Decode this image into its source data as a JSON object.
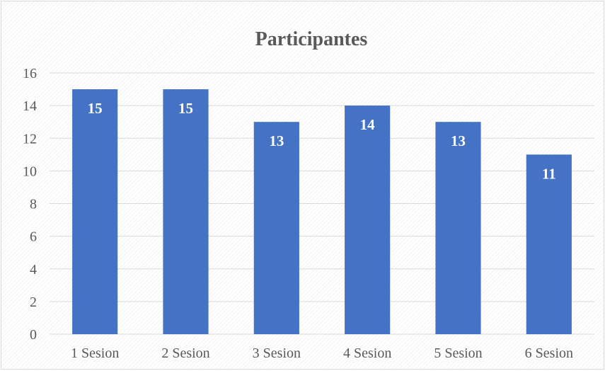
{
  "chart_data": {
    "type": "bar",
    "title": "Participantes",
    "categories": [
      "1 Sesion",
      "2 Sesion",
      "3 Sesion",
      "4 Sesion",
      "5 Sesion",
      "6 Sesion"
    ],
    "values": [
      15,
      15,
      13,
      14,
      13,
      11
    ],
    "data_labels": [
      "15",
      "15",
      "13",
      "14",
      "13",
      "11"
    ],
    "y_ticks": [
      "0",
      "2",
      "4",
      "6",
      "8",
      "10",
      "12",
      "14",
      "16"
    ],
    "ylim": [
      0,
      16
    ],
    "xlabel": "",
    "ylabel": "",
    "grid": true,
    "legend": "none",
    "colors": {
      "bar": "#4472c4",
      "grid": "#d9d9d9",
      "text": "#595959",
      "data_label": "#ffffff"
    }
  }
}
